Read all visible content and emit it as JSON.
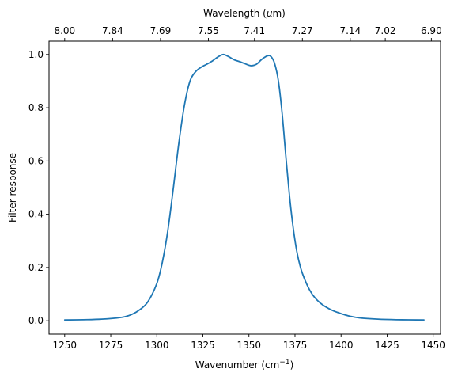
{
  "chart_data": {
    "type": "line",
    "title": "",
    "xlabel": "Wavenumber (cm",
    "xlabel_sup": "−1",
    "xlabel_end": ")",
    "ylabel": "Filter response",
    "top_xlabel": "Wavelength (",
    "top_xlabel_mu": "μ",
    "top_xlabel_end": "m)",
    "xlim": [
      1241.5,
      1454
    ],
    "ylim": [
      -0.05,
      1.05
    ],
    "grid": false,
    "legend": "none",
    "x_ticks": [
      1250,
      1275,
      1300,
      1325,
      1350,
      1375,
      1400,
      1425,
      1450
    ],
    "x_tick_labels": [
      "1250",
      "1275",
      "1300",
      "1325",
      "1350",
      "1375",
      "1400",
      "1425",
      "1450"
    ],
    "y_ticks": [
      0.0,
      0.2,
      0.4,
      0.6,
      0.8,
      1.0
    ],
    "y_tick_labels": [
      "0.0",
      "0.2",
      "0.4",
      "0.6",
      "0.8",
      "1.0"
    ],
    "top_x_ticks": [
      1250,
      1276,
      1302,
      1328,
      1353,
      1379,
      1405,
      1424,
      1449
    ],
    "top_x_tick_labels": [
      "8.00",
      "7.84",
      "7.69",
      "7.55",
      "7.41",
      "7.27",
      "7.14",
      "7.02",
      "6.90"
    ],
    "series": [
      {
        "color": "#1f77b4",
        "x": [
          1250,
          1260,
          1270,
          1280,
          1285,
          1290,
          1295,
          1300,
          1303,
          1306,
          1309,
          1312,
          1315,
          1318,
          1321,
          1324,
          1327,
          1330,
          1333,
          1336,
          1339,
          1342,
          1345,
          1348,
          1351,
          1354,
          1357,
          1360,
          1362,
          1364,
          1366,
          1368,
          1370,
          1372,
          1374,
          1376,
          1378,
          1380,
          1383,
          1386,
          1390,
          1395,
          1400,
          1405,
          1410,
          1420,
          1430,
          1445
        ],
        "y": [
          0.003,
          0.004,
          0.006,
          0.012,
          0.02,
          0.038,
          0.07,
          0.14,
          0.22,
          0.34,
          0.5,
          0.67,
          0.81,
          0.9,
          0.935,
          0.952,
          0.963,
          0.975,
          0.99,
          1.0,
          0.992,
          0.98,
          0.973,
          0.965,
          0.958,
          0.963,
          0.982,
          0.995,
          0.992,
          0.965,
          0.9,
          0.78,
          0.62,
          0.47,
          0.35,
          0.26,
          0.2,
          0.16,
          0.115,
          0.085,
          0.06,
          0.04,
          0.027,
          0.017,
          0.011,
          0.006,
          0.004,
          0.003
        ]
      }
    ]
  }
}
